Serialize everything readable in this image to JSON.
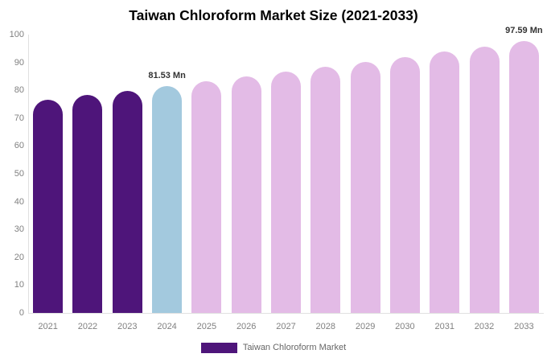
{
  "title": "Taiwan Chloroform Market Size (2021-2033)",
  "legend": {
    "label": "Taiwan Chloroform Market",
    "swatch_color": "#4E157A"
  },
  "colors": {
    "historical_bar": "#4E157A",
    "current_year_bar": "#A3C9DE",
    "forecast_bar": "#E3BBE6",
    "axis_line": "#e0e0e0",
    "tick_label": "#808080",
    "data_label": "#333333",
    "title": "#000000"
  },
  "chart_data": {
    "type": "bar",
    "title": "Taiwan Chloroform Market Size (2021-2033)",
    "xlabel": "",
    "ylabel": "",
    "unit": "Mn",
    "grid": false,
    "legend_position": "bottom",
    "ylim": [
      0,
      100
    ],
    "y_ticks": [
      0,
      10,
      20,
      30,
      40,
      50,
      60,
      70,
      80,
      90,
      100
    ],
    "categories": [
      "2021",
      "2022",
      "2023",
      "2024",
      "2025",
      "2026",
      "2027",
      "2028",
      "2029",
      "2030",
      "2031",
      "2032",
      "2033"
    ],
    "values": [
      76.7,
      78.3,
      79.9,
      81.53,
      83.2,
      84.9,
      86.6,
      88.3,
      90.1,
      91.9,
      93.8,
      95.7,
      97.59
    ],
    "bar_colors": [
      "#4E157A",
      "#4E157A",
      "#4E157A",
      "#A3C9DE",
      "#E3BBE6",
      "#E3BBE6",
      "#E3BBE6",
      "#E3BBE6",
      "#E3BBE6",
      "#E3BBE6",
      "#E3BBE6",
      "#E3BBE6",
      "#E3BBE6"
    ],
    "data_labels": [
      {
        "category": "2024",
        "text": "81.53 Mn"
      },
      {
        "category": "2033",
        "text": "97.59 Mn"
      }
    ]
  }
}
